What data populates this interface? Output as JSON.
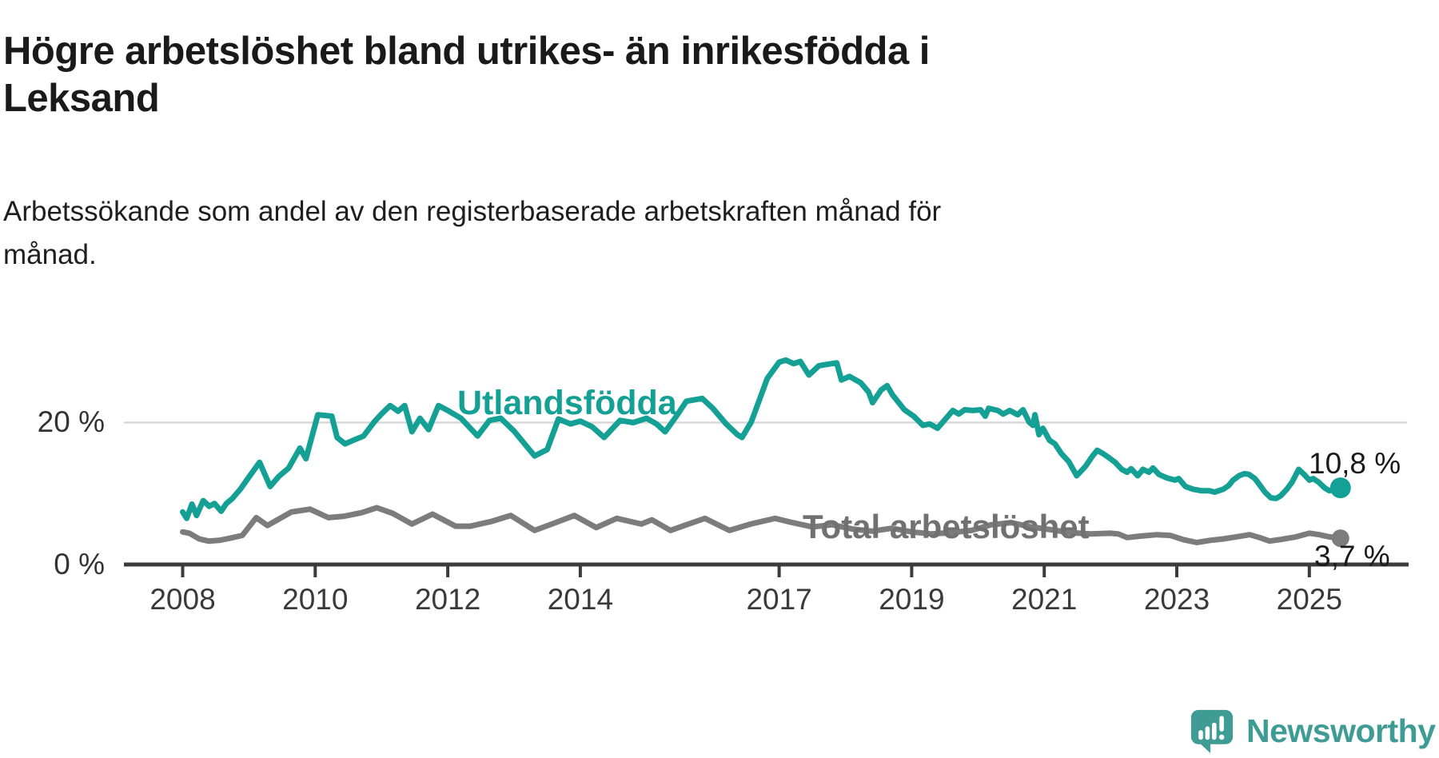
{
  "header": {
    "title": "Högre arbetslöshet bland utrikes- än inrikesfödda i\nLeksand",
    "subtitle": "Arbetssökande som andel av den registerbaserade arbetskraften månad för\nmånad."
  },
  "footer": {
    "brand": "Newsworthy"
  },
  "colors": {
    "utlandsfodda": "#14A094",
    "total": "#7C7C7C",
    "axis": "#3C3C3C",
    "gridline": "#D8D8D8",
    "logo_teal": "#3E9C95"
  },
  "chart_data": {
    "type": "line",
    "title": "Högre arbetslöshet bland utrikes- än inrikesfödda i Leksand",
    "subtitle": "Arbetssökande som andel av den registerbaserade arbetskraften månad för månad.",
    "xlabel": "",
    "ylabel": "",
    "legend_position": "inline-labels-on-lines",
    "grid": "horizontal-20-only",
    "x_axis": {
      "range": [
        2008,
        2025.5
      ],
      "ticks": [
        2008,
        2010,
        2012,
        2014,
        2017,
        2019,
        2021,
        2023,
        2025
      ],
      "tick_labels": [
        "2008",
        "2010",
        "2012",
        "2014",
        "2017",
        "2019",
        "2021",
        "2023",
        "2025"
      ]
    },
    "y_axis": {
      "range": [
        0,
        30
      ],
      "unit": "%",
      "ticks": [
        20,
        0
      ],
      "tick_labels": [
        "20 %",
        "0 %"
      ],
      "gridlines": [
        20
      ]
    },
    "series": [
      {
        "name": "Utlandsfödda",
        "color": "#14A094",
        "end_label": "10,8 %",
        "end_value": 10.8,
        "end_dot_radius": 13,
        "points": [
          [
            2008.0,
            7.4
          ],
          [
            2008.06,
            6.5
          ],
          [
            2008.14,
            8.5
          ],
          [
            2008.21,
            6.9
          ],
          [
            2008.31,
            9.0
          ],
          [
            2008.4,
            8.2
          ],
          [
            2008.48,
            8.6
          ],
          [
            2008.58,
            7.5
          ],
          [
            2008.66,
            8.6
          ],
          [
            2008.75,
            9.3
          ],
          [
            2008.87,
            10.6
          ],
          [
            2008.99,
            12.2
          ],
          [
            2009.16,
            14.4
          ],
          [
            2009.32,
            11.0
          ],
          [
            2009.45,
            12.4
          ],
          [
            2009.6,
            13.6
          ],
          [
            2009.77,
            16.4
          ],
          [
            2009.86,
            14.9
          ],
          [
            2010.04,
            21.1
          ],
          [
            2010.25,
            20.9
          ],
          [
            2010.33,
            17.9
          ],
          [
            2010.45,
            17.0
          ],
          [
            2010.6,
            17.6
          ],
          [
            2010.73,
            18.1
          ],
          [
            2010.89,
            20.1
          ],
          [
            2011.0,
            21.2
          ],
          [
            2011.13,
            22.4
          ],
          [
            2011.25,
            21.6
          ],
          [
            2011.35,
            22.4
          ],
          [
            2011.46,
            18.7
          ],
          [
            2011.58,
            20.6
          ],
          [
            2011.71,
            19.0
          ],
          [
            2011.86,
            22.4
          ],
          [
            2012.0,
            21.7
          ],
          [
            2012.2,
            20.6
          ],
          [
            2012.45,
            18.1
          ],
          [
            2012.63,
            20.3
          ],
          [
            2012.8,
            20.6
          ],
          [
            2013.0,
            18.8
          ],
          [
            2013.31,
            15.3
          ],
          [
            2013.5,
            16.2
          ],
          [
            2013.67,
            20.5
          ],
          [
            2013.85,
            19.8
          ],
          [
            2014.0,
            20.2
          ],
          [
            2014.18,
            19.4
          ],
          [
            2014.36,
            17.9
          ],
          [
            2014.6,
            20.3
          ],
          [
            2014.8,
            20.0
          ],
          [
            2015.0,
            20.6
          ],
          [
            2015.15,
            19.8
          ],
          [
            2015.28,
            18.7
          ],
          [
            2015.45,
            20.9
          ],
          [
            2015.6,
            23.0
          ],
          [
            2015.84,
            23.4
          ],
          [
            2016.0,
            22.0
          ],
          [
            2016.2,
            19.8
          ],
          [
            2016.37,
            18.3
          ],
          [
            2016.44,
            17.9
          ],
          [
            2016.58,
            20.1
          ],
          [
            2016.82,
            26.2
          ],
          [
            2017.0,
            28.5
          ],
          [
            2017.1,
            28.8
          ],
          [
            2017.22,
            28.3
          ],
          [
            2017.32,
            28.6
          ],
          [
            2017.45,
            26.7
          ],
          [
            2017.6,
            28.0
          ],
          [
            2017.72,
            28.2
          ],
          [
            2017.87,
            28.4
          ],
          [
            2017.94,
            26.0
          ],
          [
            2018.06,
            26.5
          ],
          [
            2018.23,
            25.6
          ],
          [
            2018.35,
            24.3
          ],
          [
            2018.41,
            22.8
          ],
          [
            2018.54,
            24.6
          ],
          [
            2018.63,
            25.2
          ],
          [
            2018.71,
            23.9
          ],
          [
            2018.89,
            21.8
          ],
          [
            2019.03,
            20.9
          ],
          [
            2019.17,
            19.6
          ],
          [
            2019.27,
            19.8
          ],
          [
            2019.39,
            19.2
          ],
          [
            2019.53,
            20.7
          ],
          [
            2019.62,
            21.7
          ],
          [
            2019.71,
            21.2
          ],
          [
            2019.8,
            21.8
          ],
          [
            2019.92,
            21.7
          ],
          [
            2020.04,
            21.8
          ],
          [
            2020.11,
            20.9
          ],
          [
            2020.16,
            22.0
          ],
          [
            2020.3,
            21.7
          ],
          [
            2020.38,
            21.2
          ],
          [
            2020.48,
            21.7
          ],
          [
            2020.6,
            21.1
          ],
          [
            2020.68,
            21.8
          ],
          [
            2020.77,
            20.1
          ],
          [
            2020.83,
            19.6
          ],
          [
            2020.86,
            21.1
          ],
          [
            2020.92,
            18.3
          ],
          [
            2020.98,
            19.2
          ],
          [
            2021.08,
            17.5
          ],
          [
            2021.16,
            17.0
          ],
          [
            2021.26,
            15.6
          ],
          [
            2021.37,
            14.5
          ],
          [
            2021.49,
            12.5
          ],
          [
            2021.62,
            13.8
          ],
          [
            2021.73,
            15.3
          ],
          [
            2021.8,
            16.1
          ],
          [
            2021.89,
            15.6
          ],
          [
            2021.97,
            15.1
          ],
          [
            2022.07,
            14.4
          ],
          [
            2022.17,
            13.4
          ],
          [
            2022.25,
            13.0
          ],
          [
            2022.31,
            13.5
          ],
          [
            2022.41,
            12.5
          ],
          [
            2022.49,
            13.4
          ],
          [
            2022.58,
            13.0
          ],
          [
            2022.64,
            13.6
          ],
          [
            2022.73,
            12.7
          ],
          [
            2022.85,
            12.2
          ],
          [
            2022.97,
            11.9
          ],
          [
            2023.03,
            12.1
          ],
          [
            2023.13,
            11.0
          ],
          [
            2023.25,
            10.6
          ],
          [
            2023.37,
            10.4
          ],
          [
            2023.49,
            10.4
          ],
          [
            2023.57,
            10.2
          ],
          [
            2023.7,
            10.6
          ],
          [
            2023.78,
            11.1
          ],
          [
            2023.85,
            11.9
          ],
          [
            2023.94,
            12.5
          ],
          [
            2024.02,
            12.8
          ],
          [
            2024.09,
            12.7
          ],
          [
            2024.18,
            12.1
          ],
          [
            2024.26,
            11.1
          ],
          [
            2024.33,
            10.2
          ],
          [
            2024.42,
            9.4
          ],
          [
            2024.5,
            9.3
          ],
          [
            2024.57,
            9.7
          ],
          [
            2024.66,
            10.6
          ],
          [
            2024.74,
            11.6
          ],
          [
            2024.84,
            13.4
          ],
          [
            2024.92,
            12.7
          ],
          [
            2025.0,
            11.9
          ],
          [
            2025.06,
            12.1
          ],
          [
            2025.14,
            11.6
          ],
          [
            2025.23,
            10.8
          ],
          [
            2025.3,
            10.4
          ],
          [
            2025.39,
            10.6
          ],
          [
            2025.47,
            10.8
          ]
        ]
      },
      {
        "name": "Total arbetslöshet",
        "color": "#7C7C7C",
        "end_label": "3,7 %",
        "end_value": 3.7,
        "end_dot_radius": 11,
        "points": [
          [
            2008.0,
            4.6
          ],
          [
            2008.1,
            4.4
          ],
          [
            2008.25,
            3.6
          ],
          [
            2008.39,
            3.3
          ],
          [
            2008.55,
            3.4
          ],
          [
            2008.71,
            3.7
          ],
          [
            2008.9,
            4.1
          ],
          [
            2009.11,
            6.6
          ],
          [
            2009.28,
            5.5
          ],
          [
            2009.64,
            7.4
          ],
          [
            2009.92,
            7.8
          ],
          [
            2010.2,
            6.6
          ],
          [
            2010.44,
            6.8
          ],
          [
            2010.7,
            7.3
          ],
          [
            2010.93,
            8.0
          ],
          [
            2011.17,
            7.2
          ],
          [
            2011.46,
            5.7
          ],
          [
            2011.77,
            7.1
          ],
          [
            2012.12,
            5.4
          ],
          [
            2012.34,
            5.4
          ],
          [
            2012.67,
            6.1
          ],
          [
            2012.95,
            6.9
          ],
          [
            2013.31,
            4.8
          ],
          [
            2013.6,
            5.8
          ],
          [
            2013.91,
            6.9
          ],
          [
            2014.24,
            5.2
          ],
          [
            2014.55,
            6.5
          ],
          [
            2014.92,
            5.7
          ],
          [
            2015.08,
            6.3
          ],
          [
            2015.36,
            4.8
          ],
          [
            2015.57,
            5.5
          ],
          [
            2015.88,
            6.5
          ],
          [
            2016.25,
            4.8
          ],
          [
            2016.57,
            5.7
          ],
          [
            2016.94,
            6.5
          ],
          [
            2017.2,
            5.9
          ],
          [
            2017.5,
            5.3
          ],
          [
            2017.8,
            5.6
          ],
          [
            2018.1,
            5.0
          ],
          [
            2018.4,
            4.7
          ],
          [
            2018.7,
            5.1
          ],
          [
            2019.0,
            4.6
          ],
          [
            2019.3,
            4.3
          ],
          [
            2019.6,
            4.5
          ],
          [
            2019.9,
            4.8
          ],
          [
            2020.2,
            5.6
          ],
          [
            2020.5,
            5.9
          ],
          [
            2020.8,
            5.3
          ],
          [
            2021.1,
            4.9
          ],
          [
            2021.4,
            4.5
          ],
          [
            2021.7,
            4.3
          ],
          [
            2022.0,
            4.4
          ],
          [
            2022.12,
            4.3
          ],
          [
            2022.25,
            3.8
          ],
          [
            2022.45,
            4.0
          ],
          [
            2022.7,
            4.2
          ],
          [
            2022.9,
            4.1
          ],
          [
            2023.1,
            3.5
          ],
          [
            2023.3,
            3.1
          ],
          [
            2023.5,
            3.4
          ],
          [
            2023.7,
            3.6
          ],
          [
            2023.9,
            3.9
          ],
          [
            2024.1,
            4.2
          ],
          [
            2024.25,
            3.8
          ],
          [
            2024.4,
            3.3
          ],
          [
            2024.55,
            3.5
          ],
          [
            2024.8,
            3.9
          ],
          [
            2025.0,
            4.4
          ],
          [
            2025.15,
            4.2
          ],
          [
            2025.3,
            3.9
          ],
          [
            2025.47,
            3.7
          ]
        ]
      }
    ]
  }
}
